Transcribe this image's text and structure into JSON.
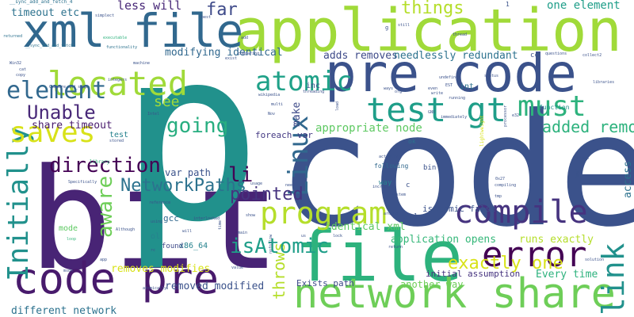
{
  "words": [
    {
      "text": "bit",
      "color": "#482475"
    },
    {
      "text": "code",
      "color": "#3b528b"
    },
    {
      "text": "p",
      "color": "#21918c"
    },
    {
      "text": "application",
      "color": "#a0da39"
    },
    {
      "text": "file",
      "color": "#2db27d"
    },
    {
      "text": "pre code",
      "color": "#3b528b"
    },
    {
      "text": "xml file",
      "color": "#31688e"
    },
    {
      "text": "network share",
      "color": "#6ece58"
    },
    {
      "text": "code pre",
      "color": "#481a6c"
    },
    {
      "text": "compile",
      "color": "#46337f"
    },
    {
      "text": "error",
      "color": "#440154"
    },
    {
      "text": "program",
      "color": "#b5de2b"
    },
    {
      "text": "test gt",
      "color": "#1f9e89"
    },
    {
      "text": "must",
      "color": "#2db27d"
    },
    {
      "text": "located",
      "color": "#a0da39"
    },
    {
      "text": "element",
      "color": "#31688e"
    },
    {
      "text": "link",
      "color": "#21918c"
    },
    {
      "text": "Initially",
      "color": "#21918c"
    },
    {
      "text": "Linux",
      "color": "#31688e"
    },
    {
      "text": "aware",
      "color": "#6ece58"
    },
    {
      "text": "throws",
      "color": "#b5de2b"
    },
    {
      "text": "make",
      "color": "#3e4a89"
    },
    {
      "text": "access",
      "color": "#2c728e"
    },
    {
      "text": "atomic",
      "color": "#1fa188"
    },
    {
      "text": "saves",
      "color": "#d8e219"
    },
    {
      "text": "Unable",
      "color": "#482878"
    },
    {
      "text": "going",
      "color": "#28ae80"
    },
    {
      "text": "see",
      "color": "#a0da39"
    },
    {
      "text": "li",
      "color": "#440154"
    },
    {
      "text": "NetworkPaths",
      "color": "#2c728e"
    },
    {
      "text": "direction",
      "color": "#440154"
    },
    {
      "text": "pointed",
      "color": "#46337f"
    },
    {
      "text": "isAtomic",
      "color": "#1f9e89"
    },
    {
      "text": "far",
      "color": "#3e4a89"
    },
    {
      "text": "things",
      "color": "#b5de2b"
    },
    {
      "text": "added removed",
      "color": "#2db27d"
    },
    {
      "text": "exactly one",
      "color": "#d8e219"
    },
    {
      "text": "less will",
      "color": "#482878"
    },
    {
      "text": "one element",
      "color": "#1f9e89"
    },
    {
      "text": "timeout etc",
      "color": "#2c728e"
    },
    {
      "text": "modifying identical",
      "color": "#31688e"
    },
    {
      "text": "adds removes",
      "color": "#3e4a89"
    },
    {
      "text": "needlessly redundant",
      "color": "#2c728e"
    },
    {
      "text": "appropriate node",
      "color": "#5ec962"
    },
    {
      "text": "share timeout",
      "color": "#481a6c"
    },
    {
      "text": "foreach var",
      "color": "#443983"
    },
    {
      "text": "var path",
      "color": "#3b528b"
    },
    {
      "text": "removes modifies",
      "color": "#d8e219"
    },
    {
      "text": "removed modified",
      "color": "#3b528b"
    },
    {
      "text": "different network",
      "color": "#2c728e"
    },
    {
      "text": "identical xml",
      "color": "#5ec962"
    },
    {
      "text": "application opens",
      "color": "#35b779"
    },
    {
      "text": "runs exactly",
      "color": "#b5de2b"
    },
    {
      "text": "isAtomic false",
      "color": "#3b528b"
    },
    {
      "text": "initial assumption",
      "color": "#46337f"
    },
    {
      "text": "Every time",
      "color": "#2db27d"
    },
    {
      "text": "another way",
      "color": "#6ece58"
    },
    {
      "text": "Exists path",
      "color": "#3e4a89"
    },
    {
      "text": "x86_64",
      "color": "#26828e"
    },
    {
      "text": "found",
      "color": "#3e4a89"
    },
    {
      "text": "gcc",
      "color": "#31688e"
    },
    {
      "text": "ol",
      "color": "#26828e"
    },
    {
      "text": "mode",
      "color": "#5ec962"
    },
    {
      "text": "test",
      "color": "#26828e"
    },
    {
      "text": "inc",
      "color": "#3b528b"
    },
    {
      "text": "int",
      "color": "#2c728e"
    },
    {
      "text": "cc",
      "color": "#3b528b"
    },
    {
      "text": "bin",
      "color": "#3b528b"
    },
    {
      "text": "tools",
      "color": "#3b528b"
    },
    {
      "text": "way",
      "color": "#26828e"
    },
    {
      "text": "following",
      "color": "#31688e"
    },
    {
      "text": "c",
      "color": "#3b528b"
    },
    {
      "text": "function",
      "color": "#21918c"
    },
    {
      "text": "ok",
      "color": "#2c728e"
    },
    {
      "text": "lightweight",
      "color": "#d8e219"
    },
    {
      "text": "__sync_add_and_fetch_4",
      "color": "#2c728e"
    },
    {
      "text": "__sync_add_and_fetch",
      "color": "#2c728e"
    },
    {
      "text": "simplect",
      "color": "#3b528b"
    },
    {
      "text": "returned",
      "color": "#2c728e"
    },
    {
      "text": "executable",
      "color": "#2db27d"
    },
    {
      "text": "functionality",
      "color": "#2c728e"
    },
    {
      "text": "library",
      "color": "#35b779"
    },
    {
      "text": "Win32",
      "color": "#3b528b"
    },
    {
      "text": "cat",
      "color": "#3b528b"
    },
    {
      "text": "copy",
      "color": "#3b528b"
    },
    {
      "text": "machine",
      "color": "#3b528b"
    },
    {
      "text": "integers",
      "color": "#3b528b"
    },
    {
      "text": "Compare_and_swap",
      "color": "#3b528b"
    },
    {
      "text": "stored",
      "color": "#3b528b"
    },
    {
      "text": "Specifically",
      "color": "#3b528b"
    },
    {
      "text": "reference",
      "color": "#3b528b"
    },
    {
      "text": "Although",
      "color": "#3b528b"
    },
    {
      "text": "using",
      "color": "#3b528b"
    },
    {
      "text": "interlocked",
      "color": "#3b528b"
    },
    {
      "text": "will",
      "color": "#3b528b"
    },
    {
      "text": "loop",
      "color": "#35b779"
    },
    {
      "text": "app",
      "color": "#3b528b"
    },
    {
      "text": "msdn",
      "color": "#3b528b"
    },
    {
      "text": "atomically",
      "color": "#3b528b"
    },
    {
      "text": "exist",
      "color": "#3b528b"
    },
    {
      "text": "add",
      "color": "#3b528b"
    },
    {
      "text": "comparing",
      "color": "#3b528b"
    },
    {
      "text": "wikipedia",
      "color": "#3b528b"
    },
    {
      "text": "multi",
      "color": "#3b528b"
    },
    {
      "text": "Nov",
      "color": "#3b528b"
    },
    {
      "text": "Intel",
      "color": "#3b528b"
    },
    {
      "text": "threading",
      "color": "#3b528b"
    },
    {
      "text": "need",
      "color": "#3b528b"
    },
    {
      "text": "usage",
      "color": "#3b528b"
    },
    {
      "text": "system",
      "color": "#3b528b"
    },
    {
      "text": "around",
      "color": "#3b528b"
    },
    {
      "text": "increment",
      "color": "#3b528b"
    },
    {
      "text": "actually",
      "color": "#3b528b"
    },
    {
      "text": "lock",
      "color": "#3b528b"
    },
    {
      "text": "us",
      "color": "#3b528b"
    },
    {
      "text": "main",
      "color": "#3b528b"
    },
    {
      "text": "value",
      "color": "#3b528b"
    },
    {
      "text": "return",
      "color": "#3b528b"
    },
    {
      "text": "rc",
      "color": "#3b528b"
    },
    {
      "text": "nofollow",
      "color": "#3b528b"
    },
    {
      "text": "show",
      "color": "#3b528b"
    },
    {
      "text": "time",
      "color": "#3b528b"
    },
    {
      "text": "questions",
      "color": "#3b528b"
    },
    {
      "text": "collect2",
      "color": "#3b528b"
    },
    {
      "text": "libraries",
      "color": "#3b528b"
    },
    {
      "text": "status",
      "color": "#3b528b"
    },
    {
      "text": "undefined",
      "color": "#3b528b"
    },
    {
      "text": "immediately",
      "color": "#3b528b"
    },
    {
      "text": "running",
      "color": "#3b528b"
    },
    {
      "text": "processor",
      "color": "#3b528b"
    },
    {
      "text": "EST",
      "color": "#3b528b"
    },
    {
      "text": "compiling",
      "color": "#3b528b"
    },
    {
      "text": "0x27",
      "color": "#3b528b"
    },
    {
      "text": "tmp",
      "color": "#3b528b"
    },
    {
      "text": "ELomp",
      "color": "#3b528b"
    },
    {
      "text": "href",
      "color": "#3b528b"
    },
    {
      "text": "solution",
      "color": "#3b528b"
    },
    {
      "text": "still",
      "color": "#3b528b"
    },
    {
      "text": "thread",
      "color": "#3b528b"
    },
    {
      "text": "even",
      "color": "#3b528b"
    },
    {
      "text": "write",
      "color": "#3b528b"
    },
    {
      "text": "GNU",
      "color": "#3b528b"
    },
    {
      "text": "e32",
      "color": "#3b528b"
    },
    {
      "text": "load",
      "color": "#3b528b"
    },
    {
      "text": "ways",
      "color": "#3b528b"
    },
    {
      "text": "org",
      "color": "#3b528b"
    },
    {
      "text": "best",
      "color": "#3b528b"
    },
    {
      "text": "1",
      "color": "#3b528b"
    },
    {
      "text": "g",
      "color": "#3b528b"
    }
  ]
}
